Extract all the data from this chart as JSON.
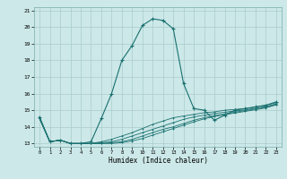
{
  "title": "",
  "xlabel": "Humidex (Indice chaleur)",
  "bg_color": "#cce8e8",
  "grid_color": "#aacccc",
  "line_color": "#1a7070",
  "xlim": [
    -0.5,
    23.5
  ],
  "ylim": [
    12.8,
    21.2
  ],
  "yticks": [
    13,
    14,
    15,
    16,
    17,
    18,
    19,
    20,
    21
  ],
  "xticks": [
    0,
    1,
    2,
    3,
    4,
    5,
    6,
    7,
    8,
    9,
    10,
    11,
    12,
    13,
    14,
    15,
    16,
    17,
    18,
    19,
    20,
    21,
    22,
    23
  ],
  "main_line_x": [
    0,
    1,
    2,
    3,
    4,
    5,
    6,
    7,
    8,
    9,
    10,
    11,
    12,
    13,
    14,
    15,
    16,
    17,
    18,
    19,
    20,
    21,
    22,
    23
  ],
  "main_line_y": [
    14.6,
    13.1,
    13.2,
    13.0,
    13.0,
    13.1,
    14.5,
    16.0,
    18.0,
    18.9,
    20.1,
    20.5,
    20.4,
    19.9,
    16.6,
    15.1,
    15.0,
    14.4,
    14.7,
    15.0,
    15.1,
    15.2,
    15.3,
    15.5
  ],
  "line2_x": [
    0,
    1,
    2,
    3,
    4,
    5,
    6,
    7,
    8,
    9,
    10,
    11,
    12,
    13,
    14,
    15,
    16,
    17,
    18,
    19,
    20,
    21,
    22,
    23
  ],
  "line2_y": [
    14.5,
    13.1,
    13.2,
    13.0,
    13.0,
    13.0,
    13.1,
    13.25,
    13.45,
    13.65,
    13.9,
    14.15,
    14.35,
    14.55,
    14.65,
    14.75,
    14.85,
    14.9,
    15.0,
    15.05,
    15.1,
    15.2,
    15.3,
    15.45
  ],
  "line3_x": [
    0,
    1,
    2,
    3,
    4,
    5,
    6,
    7,
    8,
    9,
    10,
    11,
    12,
    13,
    14,
    15,
    16,
    17,
    18,
    19,
    20,
    21,
    22,
    23
  ],
  "line3_y": [
    14.5,
    13.1,
    13.2,
    13.0,
    13.0,
    13.0,
    13.05,
    13.1,
    13.25,
    13.45,
    13.65,
    13.85,
    14.05,
    14.25,
    14.45,
    14.6,
    14.7,
    14.8,
    14.88,
    14.95,
    15.02,
    15.12,
    15.22,
    15.38
  ],
  "line4_x": [
    0,
    1,
    2,
    3,
    4,
    5,
    6,
    7,
    8,
    9,
    10,
    11,
    12,
    13,
    14,
    15,
    16,
    17,
    18,
    19,
    20,
    21,
    22,
    23
  ],
  "line4_y": [
    14.5,
    13.1,
    13.2,
    13.0,
    13.0,
    13.0,
    13.0,
    13.05,
    13.1,
    13.25,
    13.45,
    13.65,
    13.85,
    14.0,
    14.2,
    14.4,
    14.55,
    14.68,
    14.78,
    14.88,
    14.98,
    15.08,
    15.18,
    15.35
  ],
  "line5_x": [
    0,
    1,
    2,
    3,
    4,
    5,
    6,
    7,
    8,
    9,
    10,
    11,
    12,
    13,
    14,
    15,
    16,
    17,
    18,
    19,
    20,
    21,
    22,
    23
  ],
  "line5_y": [
    14.5,
    13.1,
    13.2,
    13.0,
    13.0,
    13.0,
    13.0,
    13.0,
    13.05,
    13.15,
    13.3,
    13.5,
    13.7,
    13.9,
    14.1,
    14.3,
    14.48,
    14.62,
    14.73,
    14.83,
    14.93,
    15.03,
    15.14,
    15.32
  ]
}
